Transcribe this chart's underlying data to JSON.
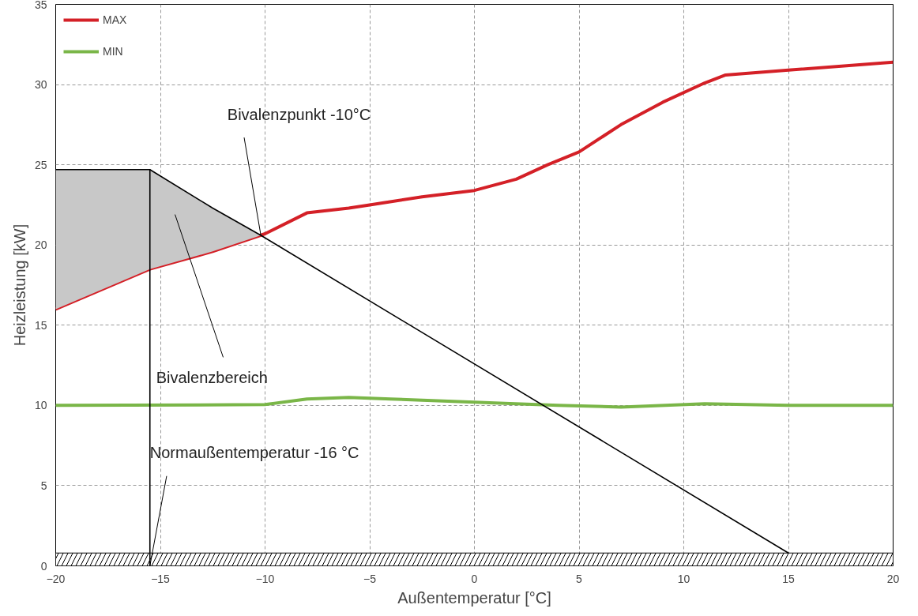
{
  "chart_data": {
    "type": "line",
    "xlabel": "Außentemperatur [°C]",
    "ylabel": "Heizleistung [kW]",
    "xlim": [
      -20,
      20
    ],
    "ylim": [
      0,
      35
    ],
    "xticks": [
      -20,
      -15,
      -10,
      -5,
      0,
      5,
      10,
      15,
      20
    ],
    "yticks": [
      0,
      5,
      10,
      15,
      20,
      25,
      30,
      35
    ],
    "grid": true,
    "legend": "top left",
    "series": [
      {
        "name": "MAX",
        "color": "#d42027",
        "x": [
          -20,
          -15.5,
          -12.5,
          -10,
          -8,
          -6,
          -5,
          -2.5,
          0,
          2,
          3.5,
          5,
          7,
          9,
          11,
          12,
          15,
          20
        ],
        "values": [
          16.0,
          18.5,
          19.6,
          20.7,
          22.0,
          22.3,
          22.5,
          23.0,
          23.4,
          24.1,
          25.0,
          25.8,
          27.5,
          28.9,
          30.1,
          30.6,
          30.9,
          31.4
        ]
      },
      {
        "name": "MIN",
        "color": "#7ab648",
        "x": [
          -20,
          -10,
          -8,
          -6,
          -4,
          0,
          4,
          7,
          11,
          15,
          20
        ],
        "values": [
          10.0,
          10.05,
          10.4,
          10.5,
          10.4,
          10.2,
          10.0,
          9.9,
          10.1,
          10.0,
          10.0
        ]
      },
      {
        "color": "#000000",
        "x": [
          -20,
          -15.5,
          -12.5,
          -10.2,
          15
        ],
        "values": [
          24.7,
          24.7,
          22.3,
          20.6,
          0.8
        ],
        "lower": [
          16.0,
          18.5,
          19.6,
          20.6,
          null
        ],
        "upper": [
          24.7,
          24.7,
          22.3,
          20.6,
          null
        ]
      },
      {
        "color": "#000000",
        "x": [
          -15.5,
          -15.5
        ],
        "values": [
          0,
          24.7
        ]
      }
    ],
    "bands": [
      {
        "axis": "y",
        "from": 0,
        "to": 0.8,
        "color": "#000000"
      }
    ],
    "annotations": [
      {
        "text": "Bivalenzpunkt -10°C",
        "x": -10.2,
        "y": 20.6
      },
      "Bivalenzbereich",
      {
        "text": "Normaußentemperatur -16 °C",
        "x": -15.5,
        "y": 0
      }
    ]
  }
}
